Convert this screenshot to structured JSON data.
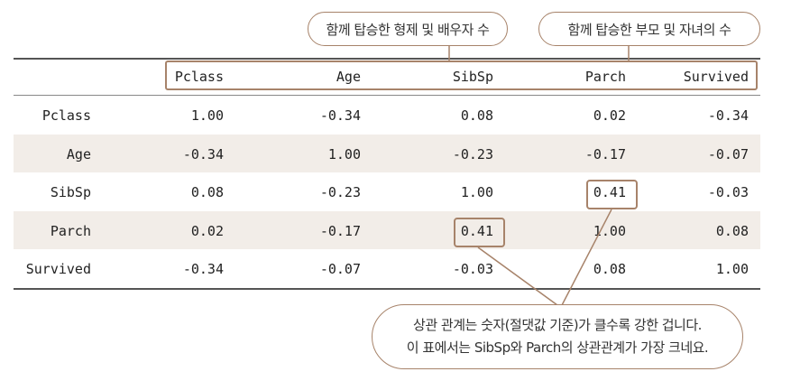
{
  "callouts": {
    "sibsp": "함께 탑승한 형제 및 배우자 수",
    "parch": "함께 탑승한 부모 및 자녀의 수",
    "note_line1": "상관 관계는 숫자(절댓값 기준)가 클수록 강한 겁니다.",
    "note_line2": "이 표에서는 SibSp와 Parch의 상관관계가 가장 크네요."
  },
  "table": {
    "columns": [
      "Pclass",
      "Age",
      "SibSp",
      "Parch",
      "Survived"
    ],
    "rows": [
      {
        "label": "Pclass",
        "values": [
          "1.00",
          "-0.34",
          "0.08",
          "0.02",
          "-0.34"
        ]
      },
      {
        "label": "Age",
        "values": [
          "-0.34",
          "1.00",
          "-0.23",
          "-0.17",
          "-0.07"
        ]
      },
      {
        "label": "SibSp",
        "values": [
          "0.08",
          "-0.23",
          "1.00",
          "0.41",
          "-0.03"
        ]
      },
      {
        "label": "Parch",
        "values": [
          "0.02",
          "-0.17",
          "0.41",
          "1.00",
          "0.08"
        ]
      },
      {
        "label": "Survived",
        "values": [
          "-0.34",
          "-0.07",
          "-0.03",
          "0.08",
          "1.00"
        ]
      }
    ]
  },
  "colors": {
    "accent": "#a7836a",
    "band": "#f2ede8"
  }
}
